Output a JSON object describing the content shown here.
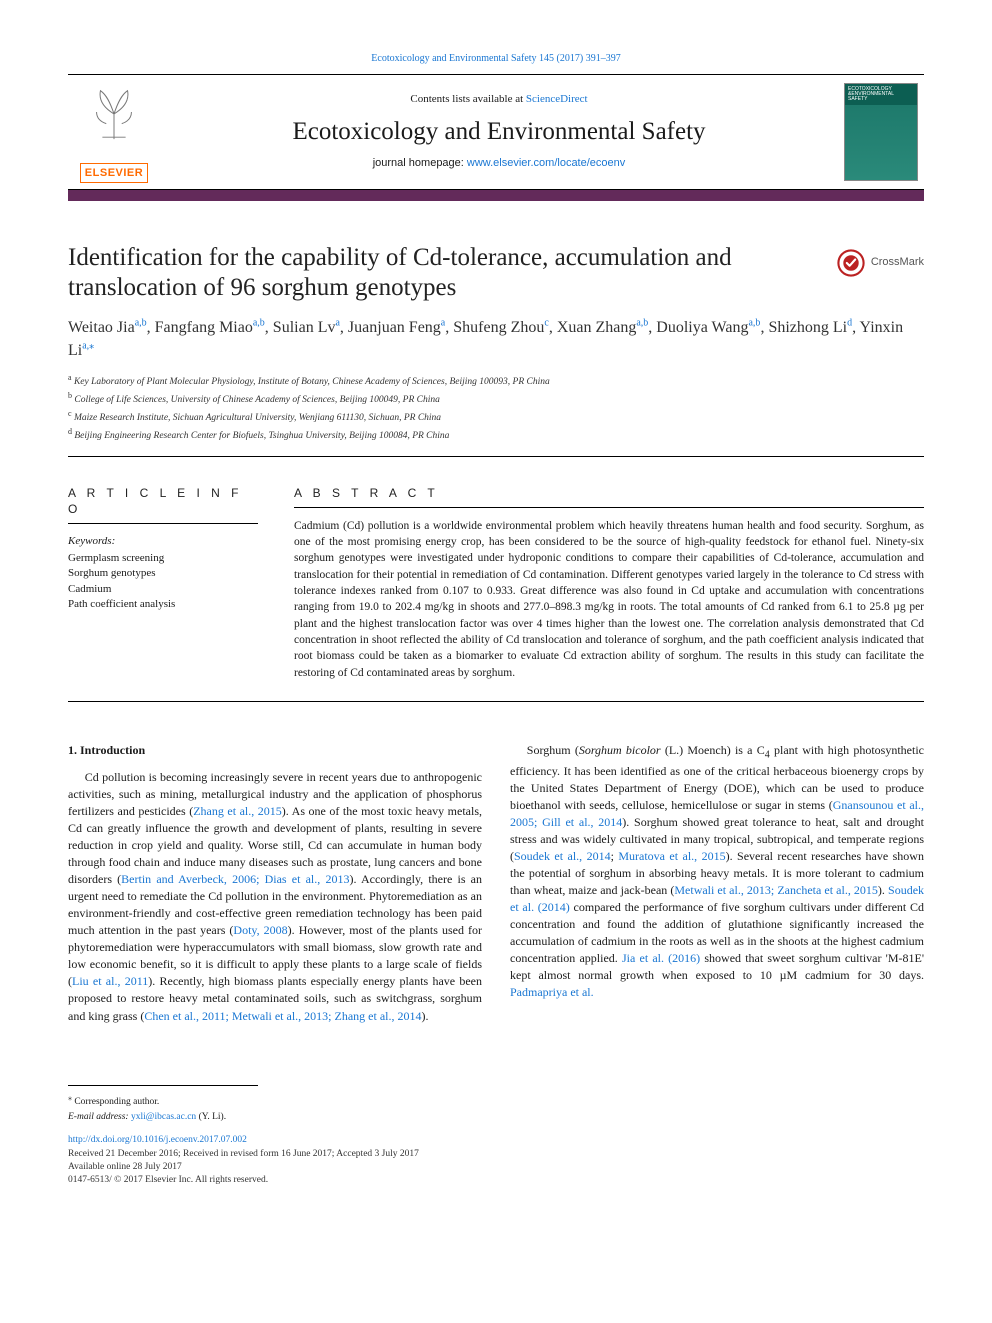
{
  "journal": {
    "running_head": "Ecotoxicology and Environmental Safety 145 (2017) 391–397",
    "contents_line_prefix": "Contents lists available at ",
    "contents_line_link": "ScienceDirect",
    "name": "Ecotoxicology and Environmental Safety",
    "homepage_prefix": "journal homepage: ",
    "homepage_url": "www.elsevier.com/locate/ecoenv",
    "elsevier_word": "ELSEVIER",
    "cover_label_line1": "ECOTOXICOLOGY",
    "cover_label_line2": "&ENVIRONMENTAL",
    "cover_label_line3": "SAFETY"
  },
  "accent_color": "#632a5a",
  "crossmark_label": "CrossMark",
  "article": {
    "title": "Identification for the capability of Cd-tolerance, accumulation and translocation of 96 sorghum genotypes",
    "authors_html": "Weitao Jia<sup>a,b</sup>, Fangfang Miao<sup>a,b</sup>, Sulian Lv<sup>a</sup>, Juanjuan Feng<sup>a</sup>, Shufeng Zhou<sup>c</sup>, Xuan Zhang<sup>a,b</sup>, Duoliya Wang<sup>a,b</sup>, Shizhong Li<sup>d</sup>, Yinxin Li<sup>a,</sup>",
    "corr_symbol": "⁎",
    "affiliations": [
      {
        "sup": "a",
        "text": "Key Laboratory of Plant Molecular Physiology, Institute of Botany, Chinese Academy of Sciences, Beijing 100093, PR China"
      },
      {
        "sup": "b",
        "text": "College of Life Sciences, University of Chinese Academy of Sciences, Beijing 100049, PR China"
      },
      {
        "sup": "c",
        "text": "Maize Research Institute, Sichuan Agricultural University, Wenjiang 611130, Sichuan, PR China"
      },
      {
        "sup": "d",
        "text": "Beijing Engineering Research Center for Biofuels, Tsinghua University, Beijing 100084, PR China"
      }
    ]
  },
  "info": {
    "heading": "A R T I C L E  I N F O",
    "keywords_label": "Keywords:",
    "keywords": [
      "Germplasm screening",
      "Sorghum genotypes",
      "Cadmium",
      "Path coefficient analysis"
    ]
  },
  "abstract": {
    "heading": "A B S T R A C T",
    "text": "Cadmium (Cd) pollution is a worldwide environmental problem which heavily threatens human health and food security. Sorghum, as one of the most promising energy crop, has been considered to be the source of high-quality feedstock for ethanol fuel. Ninety-six sorghum genotypes were investigated under hydroponic conditions to compare their capabilities of Cd-tolerance, accumulation and translocation for their potential in remediation of Cd contamination. Different genotypes varied largely in the tolerance to Cd stress with tolerance indexes ranked from 0.107 to 0.933. Great difference was also found in Cd uptake and accumulation with concentrations ranging from 19.0 to 202.4 mg/kg in shoots and 277.0–898.3 mg/kg in roots. The total amounts of Cd ranked from 6.1 to 25.8 µg per plant and the highest translocation factor was over 4 times higher than the lowest one. The correlation analysis demonstrated that Cd concentration in shoot reflected the ability of Cd translocation and tolerance of sorghum, and the path coefficient analysis indicated that root biomass could be taken as a biomarker to evaluate Cd extraction ability of sorghum. The results in this study can facilitate the restoring of Cd contaminated areas by sorghum."
  },
  "body": {
    "section_heading": "1. Introduction",
    "col1_p1a": "Cd pollution is becoming increasingly severe in recent years due to anthropogenic activities, such as mining, metallurgical industry and the application of phosphorus fertilizers and pesticides (",
    "cite1": "Zhang et al., 2015",
    "col1_p1b": "). As one of the most toxic heavy metals, Cd can greatly influence the growth and development of plants, resulting in severe reduction in crop yield and quality. Worse still, Cd can accumulate in human body through food chain and induce many diseases such as prostate, lung cancers and bone disorders (",
    "cite2": "Bertin and Averbeck, 2006; Dias et al., 2013",
    "col1_p1c": "). Accordingly, there is an urgent need to remediate the Cd pollution in the environment. Phytoremediation as an environment-friendly and cost-effective green remediation technology has been paid much attention in the past years (",
    "cite3": "Doty, 2008",
    "col1_p1d": "). However, most of the plants used for phytoremediation were hyperaccumulators with small biomass, slow growth rate and low economic benefit, so it is difficult to apply these plants to a large scale of fields (",
    "cite4": "Liu et al., 2011",
    "col1_p1e": "). Recently, high biomass plants especially energy plants have been proposed to restore heavy metal contaminated soils, such as switchgrass, sorghum",
    "col2_p0a": "and king grass (",
    "cite5": "Chen et al., 2011; Metwali et al., 2013; Zhang et al., 2014",
    "col2_p0b": ").",
    "col2_p1a": "Sorghum (",
    "col2_p1_species": "Sorghum bicolor",
    "col2_p1b": " (L.) Moench) is a C",
    "col2_p1_sub": "4",
    "col2_p1c": " plant with high photosynthetic efficiency. It has been identified as one of the critical herbaceous bioenergy crops by the United States Department of Energy (DOE), which can be used to produce bioethanol with seeds, cellulose, hemicellulose or sugar in stems (",
    "cite6": "Gnansounou et al., 2005; Gill et al., 2014",
    "col2_p1d": "). Sorghum showed great tolerance to heat, salt and drought stress and was widely cultivated in many tropical, subtropical, and temperate regions (",
    "cite7": "Soudek et al., 2014",
    "col2_p1e": "; ",
    "cite8": "Muratova et al., 2015",
    "col2_p1f": "). Several recent researches have shown the potential of sorghum in absorbing heavy metals. It is more tolerant to cadmium than wheat, maize and jack-bean (",
    "cite9": "Metwali et al., 2013; Zancheta et al., 2015",
    "col2_p1g": "). ",
    "cite10": "Soudek et al. (2014)",
    "col2_p1h": " compared the performance of five sorghum cultivars under different Cd concentration and found the addition of glutathione significantly increased the accumulation of cadmium in the roots as well as in the shoots at the highest cadmium concentration applied. ",
    "cite11": "Jia et al. (2016)",
    "col2_p1i": " showed that sweet sorghum cultivar 'M-81E' kept almost normal growth when exposed to 10 µM cadmium for 30 days. ",
    "cite12": "Padmapriya et al."
  },
  "footnotes": {
    "corr": "Corresponding author.",
    "email_label": "E-mail address:",
    "email": "yxli@ibcas.ac.cn",
    "email_paren": "(Y. Li)."
  },
  "pub": {
    "doi": "http://dx.doi.org/10.1016/j.ecoenv.2017.07.002",
    "received": "Received 21 December 2016; Received in revised form 16 June 2017; Accepted 3 July 2017",
    "online": "Available online 28 July 2017",
    "copyright": "0147-6513/ © 2017 Elsevier Inc. All rights reserved."
  }
}
